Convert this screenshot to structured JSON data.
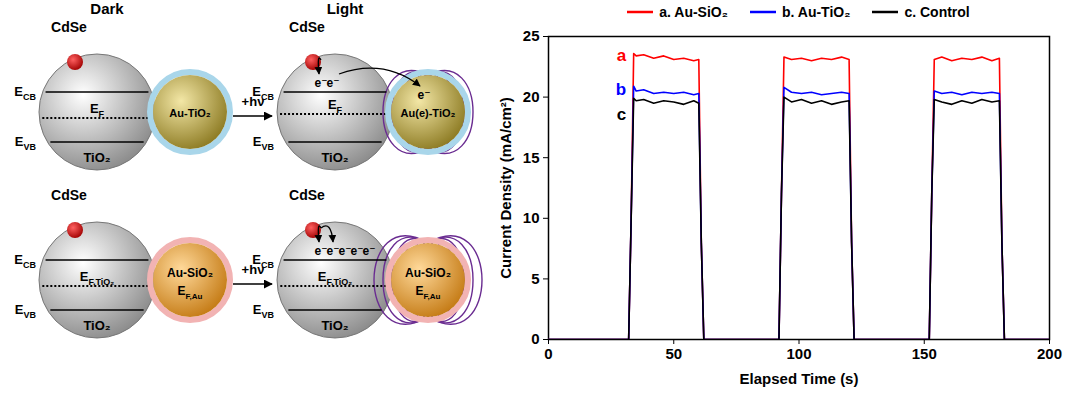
{
  "diagram": {
    "headers": [
      "Dark",
      "Light"
    ],
    "excitation": "+hν",
    "quantum_dot": "CdSe",
    "semiconductor": "TiO₂",
    "levels": {
      "cb": {
        "text": "E",
        "sub": "CB"
      },
      "vb": {
        "text": "E",
        "sub": "VB"
      }
    },
    "rows": [
      {
        "dark_particle": "Au-TiO₂",
        "light_particle": "Au(e)-TiO₂",
        "fermi_tio2": {
          "text": "E",
          "sub": "F"
        },
        "electrons_tio2": [
          "e⁻",
          "e⁻"
        ],
        "electrons_au": [
          "e⁻"
        ]
      },
      {
        "dark_particle": "Au-SiO₂",
        "light_particle": "Au-SiO₂",
        "fermi_tio2": {
          "text": "E",
          "sub": "F,TiO₂"
        },
        "fermi_au": {
          "text": "E",
          "sub": "F,Au"
        },
        "electrons_tio2": [
          "e⁻",
          "e⁻",
          "e⁻",
          "e⁻",
          "e⁻"
        ]
      }
    ]
  },
  "chart_data": {
    "type": "line",
    "xlabel": "Elapsed Time (s)",
    "ylabel": "Current Density (mA/cm²)",
    "x": [
      0,
      32,
      33,
      34,
      35,
      38,
      42,
      46,
      50,
      54,
      58,
      60,
      61,
      62,
      92,
      93,
      94,
      97,
      101,
      105,
      109,
      113,
      117,
      120,
      121,
      122,
      152,
      153,
      154,
      157,
      161,
      165,
      169,
      173,
      177,
      180,
      181,
      182,
      200
    ],
    "series": [
      {
        "name": "a. Au-SiO₂",
        "color": "#ff0000",
        "values": [
          0,
          0,
          10,
          23.6,
          23.4,
          23.5,
          23.2,
          23.4,
          23.1,
          23.2,
          23.0,
          23.1,
          8,
          0,
          0,
          12,
          23.3,
          23.1,
          23.2,
          23.0,
          23.2,
          23.1,
          23.3,
          23.1,
          8,
          0,
          0,
          12,
          23.1,
          23.3,
          23.0,
          23.2,
          23.1,
          23.3,
          23.0,
          23.2,
          8,
          0,
          0
        ]
      },
      {
        "name": "b. Au-TiO₂",
        "color": "#0000ff",
        "values": [
          0,
          0,
          10,
          20.9,
          20.5,
          20.6,
          20.3,
          20.4,
          20.3,
          20.4,
          20.2,
          20.3,
          8,
          0,
          0,
          12,
          20.8,
          20.4,
          20.3,
          20.4,
          20.2,
          20.3,
          20.4,
          20.3,
          8,
          0,
          0,
          12,
          20.5,
          20.3,
          20.4,
          20.2,
          20.4,
          20.3,
          20.4,
          20.3,
          8,
          0,
          0
        ]
      },
      {
        "name": "c. Control",
        "color": "#000000",
        "values": [
          0,
          0,
          10,
          19.9,
          19.7,
          19.8,
          19.5,
          19.7,
          19.6,
          19.4,
          19.7,
          19.5,
          8,
          0,
          0,
          12,
          20.0,
          19.6,
          19.8,
          19.5,
          19.7,
          19.4,
          19.6,
          19.7,
          8,
          0,
          0,
          12,
          19.8,
          19.6,
          19.4,
          19.7,
          19.5,
          19.8,
          19.6,
          19.7,
          8,
          0,
          0
        ]
      }
    ],
    "annotations": [
      {
        "text": "a",
        "x": 31,
        "y": 23.4,
        "color": "#ff0000"
      },
      {
        "text": "b",
        "x": 31,
        "y": 20.6,
        "color": "#0000ff"
      },
      {
        "text": "c",
        "x": 31,
        "y": 18.6,
        "color": "#000000"
      }
    ],
    "xlim": [
      0,
      200
    ],
    "ylim": [
      0,
      25
    ],
    "xticks": [
      0,
      50,
      100,
      150,
      200
    ],
    "yticks": [
      0,
      5,
      10,
      15,
      20,
      25
    ],
    "legend": "top"
  }
}
